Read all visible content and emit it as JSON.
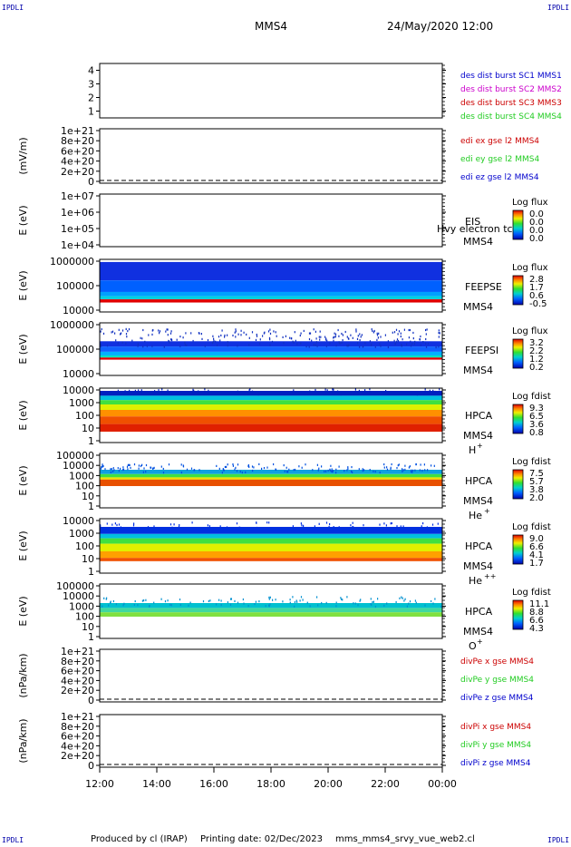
{
  "header": {
    "spacecraft": "MMS4",
    "datetime": "24/May/2020 12:00",
    "corner_mark": "IPDLI"
  },
  "footer": {
    "produced_by": "Produced by cl (IRAP)",
    "printing_date": "Printing date: 02/Dec/2023",
    "filename": "mms_mms4_srvy_vue_web2.cl"
  },
  "time_axis": {
    "ticks": [
      "12:00",
      "14:00",
      "16:00",
      "18:00",
      "20:00",
      "22:00",
      "00:00"
    ]
  },
  "colors": {
    "red": "#cc0000",
    "magenta": "#cc00cc",
    "green": "#22cc22",
    "blue": "#0000cc"
  },
  "chart_data": [
    {
      "id": "p1",
      "type": "line",
      "yticks": [
        "1",
        "2",
        "3",
        "4"
      ],
      "legend": [
        {
          "text": "des dist burst SC1 MMS1",
          "color": "#0000cc"
        },
        {
          "text": "des dist burst SC2 MMS2",
          "color": "#cc00cc"
        },
        {
          "text": "des dist burst SC3 MMS3",
          "color": "#cc0000"
        },
        {
          "text": "des dist burst SC4 MMS4",
          "color": "#22cc22"
        }
      ]
    },
    {
      "id": "p2",
      "type": "line",
      "ylabel": "(mV/m)",
      "yticks": [
        "0",
        "2e+20",
        "4e+20",
        "6e+20",
        "8e+20",
        "1e+21"
      ],
      "legend": [
        {
          "text": "edi ex gse l2 MMS4",
          "color": "#cc0000"
        },
        {
          "text": "edi ey gse l2 MMS4",
          "color": "#22cc22"
        },
        {
          "text": "edi ez gse l2 MMS4",
          "color": "#0000cc"
        }
      ]
    },
    {
      "id": "p3",
      "type": "heatmap",
      "ylabel": "E (eV)",
      "yticks": [
        "1e+04",
        "1e+05",
        "1e+06",
        "1e+07"
      ],
      "instrument": "EIS",
      "sc": "MMS4",
      "extra": "Hvy electron tc",
      "cbar_title": "Log flux",
      "cbar_ticks": [
        "0.0",
        "0.0",
        "0.0",
        "0.0"
      ]
    },
    {
      "id": "p4",
      "type": "heatmap",
      "ylabel": "E (eV)",
      "yticks": [
        "10000",
        "100000",
        "1000000"
      ],
      "instrument": "FEEPSE",
      "sc": "MMS4",
      "cbar_title": "Log flux",
      "cbar_ticks": [
        "2.8",
        "1.7",
        "0.6",
        "-0.5"
      ]
    },
    {
      "id": "p5",
      "type": "heatmap",
      "ylabel": "E (eV)",
      "yticks": [
        "10000",
        "100000",
        "1000000"
      ],
      "instrument": "FEEPSI",
      "sc": "MMS4",
      "cbar_title": "Log flux",
      "cbar_ticks": [
        "3.2",
        "2.2",
        "1.2",
        "0.2"
      ]
    },
    {
      "id": "p6",
      "type": "heatmap",
      "ylabel": "E (eV)",
      "yticks": [
        "1",
        "10",
        "100",
        "1000",
        "10000"
      ],
      "instrument": "HPCA",
      "sc": "MMS4",
      "species": "H",
      "charge": "+",
      "cbar_title": "Log fdist",
      "cbar_ticks": [
        "9.3",
        "6.5",
        "3.6",
        "0.8"
      ]
    },
    {
      "id": "p7",
      "type": "heatmap",
      "ylabel": "E (eV)",
      "yticks": [
        "1",
        "10",
        "100",
        "1000",
        "10000",
        "100000"
      ],
      "instrument": "HPCA",
      "sc": "MMS4",
      "species": "He",
      "charge": "+",
      "cbar_title": "Log fdist",
      "cbar_ticks": [
        "7.5",
        "5.7",
        "3.8",
        "2.0"
      ]
    },
    {
      "id": "p8",
      "type": "heatmap",
      "ylabel": "E (eV)",
      "yticks": [
        "1",
        "10",
        "100",
        "1000",
        "10000"
      ],
      "instrument": "HPCA",
      "sc": "MMS4",
      "species": "He",
      "charge": "++",
      "cbar_title": "Log fdist",
      "cbar_ticks": [
        "9.0",
        "6.6",
        "4.1",
        "1.7"
      ]
    },
    {
      "id": "p9",
      "type": "heatmap",
      "ylabel": "E (eV)",
      "yticks": [
        "1",
        "10",
        "100",
        "1000",
        "10000",
        "100000"
      ],
      "instrument": "HPCA",
      "sc": "MMS4",
      "species": "O",
      "charge": "+",
      "cbar_title": "Log fdist",
      "cbar_ticks": [
        "11.1",
        "8.8",
        "6.6",
        "4.3"
      ]
    },
    {
      "id": "p10",
      "type": "line",
      "ylabel": "(nPa/km)",
      "yticks": [
        "0",
        "2e+20",
        "4e+20",
        "6e+20",
        "8e+20",
        "1e+21"
      ],
      "legend": [
        {
          "text": "divPe x gse MMS4",
          "color": "#cc0000"
        },
        {
          "text": "divPe y gse MMS4",
          "color": "#22cc22"
        },
        {
          "text": "divPe z gse MMS4",
          "color": "#0000cc"
        }
      ]
    },
    {
      "id": "p11",
      "type": "line",
      "ylabel": "(nPa/km)",
      "yticks": [
        "0",
        "2e+20",
        "4e+20",
        "6e+20",
        "8e+20",
        "1e+21"
      ],
      "legend": [
        {
          "text": "divPi x gse MMS4",
          "color": "#cc0000"
        },
        {
          "text": "divPi y gse MMS4",
          "color": "#22cc22"
        },
        {
          "text": "divPi z gse MMS4",
          "color": "#0000cc"
        }
      ]
    }
  ]
}
